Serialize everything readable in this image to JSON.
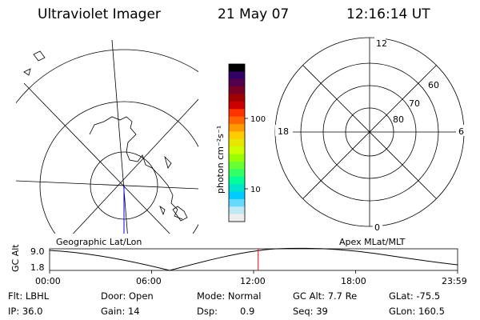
{
  "header": {
    "instrument": "Ultraviolet Imager",
    "date": "21 May 07",
    "time": "12:16:14 UT"
  },
  "colorbar": {
    "unit_label": "photon cm⁻²s⁻¹",
    "tick_100": "100",
    "tick_10": "10",
    "colors": [
      "#000000",
      "#330066",
      "#55004d",
      "#7a0026",
      "#a10000",
      "#cc0000",
      "#ff3300",
      "#ff6600",
      "#ff9900",
      "#ffcc00",
      "#e6e600",
      "#ccff00",
      "#99ff00",
      "#66ff33",
      "#33ff66",
      "#00ff99",
      "#00e6cc",
      "#00ccff",
      "#66d9ff",
      "#bfeaf5",
      "#eeeeee"
    ]
  },
  "left_map": {
    "caption": "Geographic Lat/Lon"
  },
  "right_map": {
    "caption": "Apex MLat/MLT",
    "mlt_top": "12",
    "mlt_bottom": "0",
    "mlt_left": "18",
    "mlt_right": "6",
    "lat_60": "60",
    "lat_70": "70",
    "lat_80": "80"
  },
  "altitude_plot": {
    "ylabel": "GC Alt",
    "ytick_high": "9.0",
    "ytick_low": "1.8",
    "xticks": [
      "00:00",
      "06:00",
      "12:00",
      "18:00",
      "23:59"
    ],
    "marker_time_hours": 12.27,
    "marker_color": "#ff0000"
  },
  "info": {
    "filter": "Flt: LBHL",
    "ip": "IP: 36.0",
    "door": "Door: Open",
    "gain": "Gain: 14",
    "mode": "Mode: Normal",
    "dsp_label": "Dsp:",
    "dsp_value": "0.9",
    "gc_alt": "GC Alt: 7.7 Re",
    "seq": "Seq: 39",
    "glat": "GLat: -75.5",
    "glon": "GLon: 160.5"
  }
}
